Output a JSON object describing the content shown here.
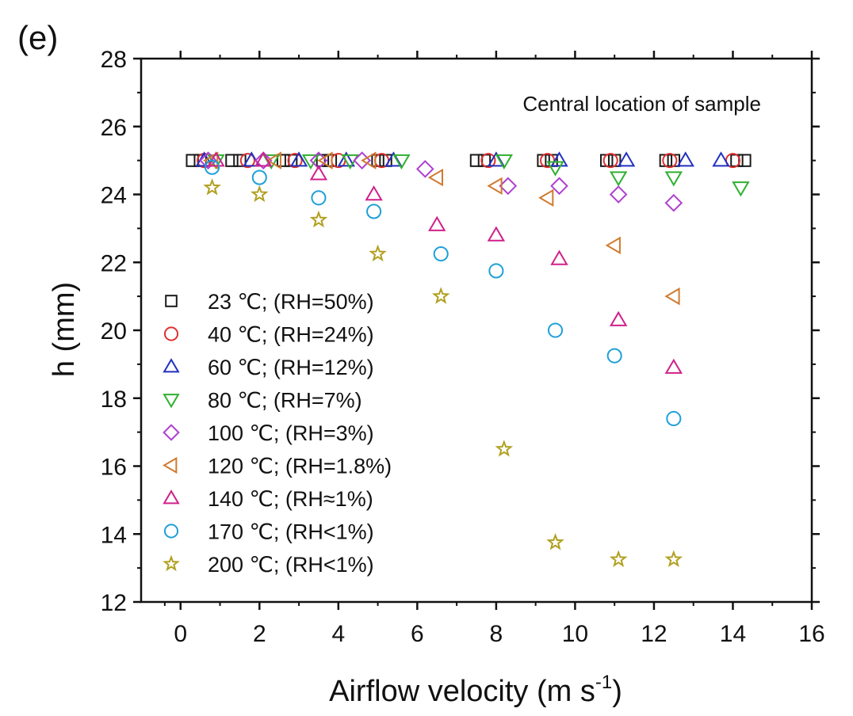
{
  "chart_data": {
    "type": "scatter",
    "panel_label": "(e)",
    "annotation": "Central location of sample",
    "xlabel": "Airflow velocity (m s",
    "xlabel_superscript": "-1",
    "xlabel_suffix": ")",
    "ylabel": "h (mm)",
    "xlim": [
      -1,
      16
    ],
    "ylim": [
      12,
      28
    ],
    "xticks": [
      0,
      2,
      4,
      6,
      8,
      10,
      12,
      14,
      16
    ],
    "yticks": [
      12,
      14,
      16,
      18,
      20,
      22,
      24,
      26,
      28
    ],
    "legend_position": "left",
    "series": [
      {
        "name": "23 ℃; (RH=50%)",
        "marker": "square",
        "color": "#1a1a1a",
        "x": [
          0.3,
          0.5,
          1.3,
          1.5,
          2.6,
          2.8,
          3.6,
          3.8,
          5.0,
          5.2,
          7.5,
          7.7,
          9.2,
          9.4,
          10.8,
          11.0,
          12.3,
          12.5,
          14.1,
          14.3
        ],
        "y": [
          25,
          25,
          25,
          25,
          25,
          25,
          25,
          25,
          25,
          25,
          25,
          25,
          25,
          25,
          25,
          25,
          25,
          25,
          25,
          25
        ]
      },
      {
        "name": "40 ℃; (RH=24%)",
        "marker": "circle",
        "color": "#e03030",
        "x": [
          0.6,
          1.7,
          2.9,
          4.0,
          5.1,
          7.8,
          9.3,
          10.9,
          12.4,
          14.0
        ],
        "y": [
          25,
          25,
          25,
          25,
          25,
          25,
          25,
          25,
          25,
          25
        ]
      },
      {
        "name": "60 ℃; (RH=12%)",
        "marker": "triangle-up",
        "color": "#2030c0",
        "x": [
          0.6,
          1.8,
          3.0,
          4.2,
          5.4,
          8.0,
          9.6,
          11.3,
          12.8,
          13.7
        ],
        "y": [
          25,
          25,
          25,
          25,
          25,
          25,
          25,
          25,
          25,
          25
        ]
      },
      {
        "name": "80 ℃; (RH=7%)",
        "marker": "triangle-down",
        "color": "#30b030",
        "x": [
          0.9,
          2.3,
          3.3,
          4.3,
          5.6,
          8.2,
          9.5,
          11.1,
          12.5,
          14.2
        ],
        "y": [
          25,
          25,
          25,
          25,
          25,
          25,
          24.8,
          24.5,
          24.5,
          24.2
        ]
      },
      {
        "name": "100 ℃; (RH=3%)",
        "marker": "diamond",
        "color": "#b040d0",
        "x": [
          0.7,
          2.1,
          3.5,
          4.6,
          6.2,
          8.3,
          9.6,
          11.1,
          12.5
        ],
        "y": [
          25,
          25,
          25,
          25,
          24.75,
          24.25,
          24.25,
          24.0,
          23.75
        ]
      },
      {
        "name": "120 ℃; (RH=1.8%)",
        "marker": "triangle-left",
        "color": "#d07a30",
        "x": [
          0.8,
          2.4,
          3.7,
          4.8,
          6.5,
          8.0,
          9.3,
          11.0,
          12.5
        ],
        "y": [
          25,
          25,
          25,
          25,
          24.5,
          24.25,
          23.9,
          22.5,
          21.0
        ]
      },
      {
        "name": "140 ℃; (RH≈1%)",
        "marker": "triangle-up",
        "color": "#d0208a",
        "x": [
          0.9,
          2.1,
          3.5,
          4.9,
          6.5,
          8.0,
          9.6,
          11.1,
          12.5
        ],
        "y": [
          25,
          25,
          24.6,
          24.0,
          23.1,
          22.8,
          22.1,
          20.3,
          18.9
        ]
      },
      {
        "name": "170 ℃; (RH<1%)",
        "marker": "circle",
        "color": "#1ea0d8",
        "x": [
          0.8,
          2.0,
          3.5,
          4.9,
          6.6,
          8.0,
          9.5,
          11.0,
          12.5
        ],
        "y": [
          24.8,
          24.5,
          23.9,
          23.5,
          22.25,
          21.75,
          20.0,
          19.25,
          17.4
        ]
      },
      {
        "name": "200 ℃; (RH<1%)",
        "marker": "star",
        "color": "#b0a020",
        "x": [
          0.8,
          2.0,
          3.5,
          5.0,
          6.6,
          8.2,
          9.5,
          11.1,
          12.5
        ],
        "y": [
          24.2,
          24.0,
          23.25,
          22.25,
          21.0,
          16.5,
          13.75,
          13.25,
          13.25
        ]
      }
    ]
  }
}
